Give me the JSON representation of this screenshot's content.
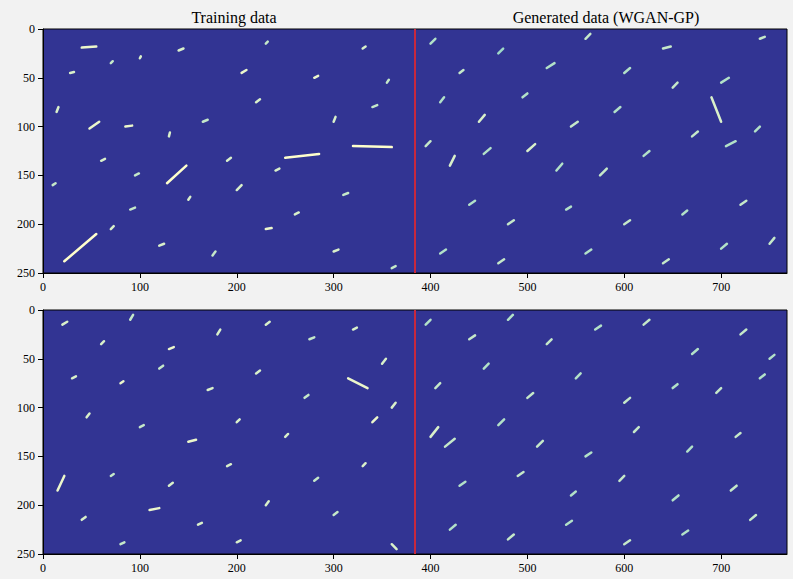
{
  "chart_data": [
    {
      "type": "tracks",
      "titles": [
        "Training data",
        "Generated data (WGAN-GP)"
      ],
      "xlim": [
        0,
        768
      ],
      "ylim": [
        0,
        250
      ],
      "xticks": [
        0,
        100,
        200,
        300,
        400,
        500,
        600,
        700
      ],
      "yticks": [
        0,
        50,
        100,
        150,
        200,
        250
      ],
      "divider_x": 384,
      "divider_color": "#c8283c",
      "colors": [
        "#3fb3c2",
        "#ffffcc"
      ],
      "value_range": [
        0,
        1
      ],
      "tracks": [
        [
          40,
          19,
          55,
          18,
          0.9
        ],
        [
          28,
          45,
          32,
          44,
          0.8
        ],
        [
          70,
          35,
          72,
          33,
          0.7
        ],
        [
          100,
          30,
          101,
          28,
          0.8
        ],
        [
          140,
          22,
          145,
          20,
          0.8
        ],
        [
          205,
          45,
          210,
          42,
          0.9
        ],
        [
          230,
          15,
          232,
          13,
          0.7
        ],
        [
          280,
          50,
          284,
          48,
          0.9
        ],
        [
          330,
          20,
          333,
          18,
          0.8
        ],
        [
          355,
          55,
          357,
          52,
          0.7
        ],
        [
          14,
          85,
          16,
          80,
          0.8
        ],
        [
          48,
          102,
          58,
          95,
          0.9
        ],
        [
          85,
          100,
          92,
          99,
          0.9
        ],
        [
          130,
          110,
          131,
          106,
          0.8
        ],
        [
          165,
          95,
          170,
          93,
          0.7
        ],
        [
          220,
          75,
          224,
          72,
          0.8
        ],
        [
          300,
          95,
          302,
          90,
          0.8
        ],
        [
          340,
          80,
          345,
          78,
          0.7
        ],
        [
          60,
          135,
          64,
          133,
          0.8
        ],
        [
          95,
          150,
          99,
          148,
          0.7
        ],
        [
          128,
          158,
          148,
          140,
          1
        ],
        [
          190,
          135,
          194,
          132,
          0.8
        ],
        [
          250,
          132,
          285,
          128,
          1
        ],
        [
          320,
          120,
          360,
          121,
          1
        ],
        [
          200,
          165,
          205,
          160,
          0.8
        ],
        [
          90,
          185,
          95,
          183,
          0.7
        ],
        [
          150,
          175,
          152,
          172,
          0.8
        ],
        [
          260,
          190,
          264,
          188,
          0.8
        ],
        [
          310,
          170,
          315,
          168,
          0.7
        ],
        [
          22,
          238,
          55,
          210,
          1
        ],
        [
          120,
          222,
          125,
          220,
          0.8
        ],
        [
          175,
          232,
          178,
          228,
          0.7
        ],
        [
          230,
          205,
          236,
          204,
          0.9
        ],
        [
          300,
          228,
          305,
          226,
          0.8
        ],
        [
          360,
          245,
          364,
          243,
          0.7
        ],
        [
          70,
          205,
          73,
          202,
          0.8
        ],
        [
          10,
          160,
          13,
          158,
          0.7
        ],
        [
          240,
          145,
          244,
          143,
          0.8
        ],
        [
          400,
          15,
          405,
          10,
          0.6
        ],
        [
          430,
          45,
          434,
          42,
          0.7
        ],
        [
          470,
          25,
          475,
          20,
          0.5
        ],
        [
          520,
          40,
          528,
          35,
          0.6
        ],
        [
          560,
          10,
          565,
          5,
          0.7
        ],
        [
          600,
          45,
          606,
          40,
          0.6
        ],
        [
          640,
          20,
          648,
          18,
          0.7
        ],
        [
          700,
          55,
          708,
          50,
          0.6
        ],
        [
          740,
          10,
          745,
          8,
          0.7
        ],
        [
          410,
          75,
          414,
          70,
          0.6
        ],
        [
          450,
          95,
          456,
          88,
          0.8
        ],
        [
          495,
          70,
          500,
          66,
          0.6
        ],
        [
          545,
          100,
          552,
          95,
          0.7
        ],
        [
          590,
          85,
          596,
          80,
          0.6
        ],
        [
          650,
          60,
          655,
          55,
          0.7
        ],
        [
          690,
          70,
          700,
          95,
          0.8
        ],
        [
          735,
          105,
          740,
          100,
          0.6
        ],
        [
          395,
          120,
          400,
          115,
          0.7
        ],
        [
          420,
          140,
          425,
          130,
          0.8
        ],
        [
          455,
          128,
          462,
          122,
          0.6
        ],
        [
          500,
          125,
          508,
          118,
          0.8
        ],
        [
          530,
          145,
          536,
          138,
          0.6
        ],
        [
          575,
          150,
          582,
          143,
          0.7
        ],
        [
          620,
          130,
          626,
          125,
          0.6
        ],
        [
          670,
          110,
          676,
          105,
          0.7
        ],
        [
          705,
          120,
          715,
          115,
          0.6
        ],
        [
          440,
          180,
          446,
          176,
          0.6
        ],
        [
          480,
          200,
          486,
          196,
          0.7
        ],
        [
          540,
          185,
          545,
          182,
          0.6
        ],
        [
          600,
          200,
          606,
          196,
          0.7
        ],
        [
          660,
          190,
          665,
          186,
          0.6
        ],
        [
          720,
          180,
          726,
          176,
          0.7
        ],
        [
          410,
          230,
          416,
          226,
          0.6
        ],
        [
          470,
          240,
          476,
          236,
          0.7
        ],
        [
          560,
          230,
          566,
          226,
          0.6
        ],
        [
          640,
          240,
          646,
          236,
          0.7
        ],
        [
          700,
          225,
          706,
          220,
          0.6
        ],
        [
          750,
          220,
          755,
          214,
          0.7
        ]
      ]
    },
    {
      "type": "tracks",
      "xlim": [
        0,
        768
      ],
      "ylim": [
        0,
        250
      ],
      "xticks": [
        0,
        100,
        200,
        300,
        400,
        500,
        600,
        700
      ],
      "yticks": [
        0,
        50,
        100,
        150,
        200,
        250
      ],
      "divider_x": 384,
      "divider_color": "#c8283c",
      "colors": [
        "#3fb3c2",
        "#ffffcc"
      ],
      "value_range": [
        0,
        1
      ],
      "tracks": [
        [
          20,
          15,
          25,
          12,
          0.8
        ],
        [
          60,
          35,
          63,
          32,
          0.8
        ],
        [
          90,
          10,
          93,
          5,
          0.7
        ],
        [
          130,
          40,
          135,
          38,
          0.9
        ],
        [
          180,
          25,
          183,
          20,
          0.8
        ],
        [
          230,
          15,
          234,
          12,
          0.8
        ],
        [
          275,
          30,
          280,
          28,
          0.7
        ],
        [
          320,
          20,
          324,
          18,
          0.8
        ],
        [
          350,
          55,
          354,
          50,
          0.8
        ],
        [
          30,
          70,
          34,
          68,
          0.8
        ],
        [
          80,
          75,
          83,
          73,
          0.9
        ],
        [
          120,
          60,
          124,
          57,
          0.7
        ],
        [
          170,
          82,
          175,
          80,
          0.8
        ],
        [
          220,
          65,
          224,
          62,
          0.8
        ],
        [
          270,
          90,
          274,
          87,
          0.7
        ],
        [
          315,
          70,
          335,
          80,
          0.9
        ],
        [
          360,
          100,
          364,
          95,
          0.8
        ],
        [
          45,
          110,
          48,
          106,
          0.8
        ],
        [
          100,
          120,
          104,
          118,
          0.7
        ],
        [
          150,
          135,
          158,
          133,
          0.9
        ],
        [
          200,
          115,
          203,
          112,
          0.8
        ],
        [
          250,
          130,
          253,
          127,
          0.8
        ],
        [
          340,
          115,
          345,
          110,
          0.9
        ],
        [
          15,
          185,
          22,
          170,
          0.9
        ],
        [
          70,
          170,
          73,
          168,
          0.7
        ],
        [
          130,
          180,
          134,
          177,
          0.8
        ],
        [
          190,
          160,
          194,
          158,
          0.8
        ],
        [
          280,
          175,
          284,
          172,
          0.7
        ],
        [
          330,
          160,
          333,
          157,
          0.8
        ],
        [
          40,
          215,
          44,
          212,
          0.8
        ],
        [
          110,
          205,
          120,
          203,
          0.9
        ],
        [
          160,
          220,
          164,
          218,
          0.8
        ],
        [
          230,
          200,
          233,
          196,
          0.8
        ],
        [
          300,
          210,
          304,
          207,
          0.7
        ],
        [
          360,
          240,
          365,
          245,
          0.8
        ],
        [
          80,
          240,
          84,
          238,
          0.7
        ],
        [
          200,
          238,
          204,
          236,
          0.8
        ],
        [
          395,
          15,
          400,
          10,
          0.6
        ],
        [
          440,
          30,
          446,
          26,
          0.7
        ],
        [
          480,
          10,
          485,
          5,
          0.6
        ],
        [
          520,
          35,
          525,
          30,
          0.7
        ],
        [
          570,
          20,
          576,
          16,
          0.6
        ],
        [
          620,
          15,
          626,
          10,
          0.7
        ],
        [
          670,
          45,
          676,
          40,
          0.6
        ],
        [
          720,
          25,
          726,
          20,
          0.7
        ],
        [
          750,
          50,
          755,
          46,
          0.6
        ],
        [
          405,
          80,
          410,
          75,
          0.7
        ],
        [
          455,
          60,
          460,
          55,
          0.6
        ],
        [
          500,
          90,
          506,
          85,
          0.7
        ],
        [
          550,
          70,
          555,
          65,
          0.6
        ],
        [
          600,
          95,
          606,
          90,
          0.7
        ],
        [
          650,
          80,
          655,
          76,
          0.6
        ],
        [
          695,
          85,
          700,
          80,
          0.7
        ],
        [
          740,
          70,
          745,
          66,
          0.6
        ],
        [
          400,
          130,
          408,
          120,
          0.8
        ],
        [
          415,
          140,
          425,
          132,
          0.7
        ],
        [
          470,
          118,
          476,
          112,
          0.6
        ],
        [
          510,
          140,
          516,
          134,
          0.7
        ],
        [
          560,
          150,
          566,
          146,
          0.6
        ],
        [
          610,
          125,
          615,
          120,
          0.7
        ],
        [
          665,
          145,
          670,
          140,
          0.6
        ],
        [
          715,
          130,
          720,
          126,
          0.7
        ],
        [
          430,
          180,
          436,
          176,
          0.6
        ],
        [
          490,
          170,
          496,
          166,
          0.7
        ],
        [
          545,
          190,
          550,
          186,
          0.6
        ],
        [
          595,
          175,
          600,
          170,
          0.7
        ],
        [
          650,
          195,
          656,
          190,
          0.6
        ],
        [
          710,
          185,
          716,
          180,
          0.7
        ],
        [
          420,
          225,
          426,
          220,
          0.6
        ],
        [
          480,
          235,
          486,
          230,
          0.7
        ],
        [
          540,
          220,
          546,
          216,
          0.6
        ],
        [
          600,
          240,
          606,
          236,
          0.7
        ],
        [
          660,
          230,
          666,
          226,
          0.6
        ],
        [
          730,
          215,
          736,
          210,
          0.7
        ]
      ]
    }
  ]
}
